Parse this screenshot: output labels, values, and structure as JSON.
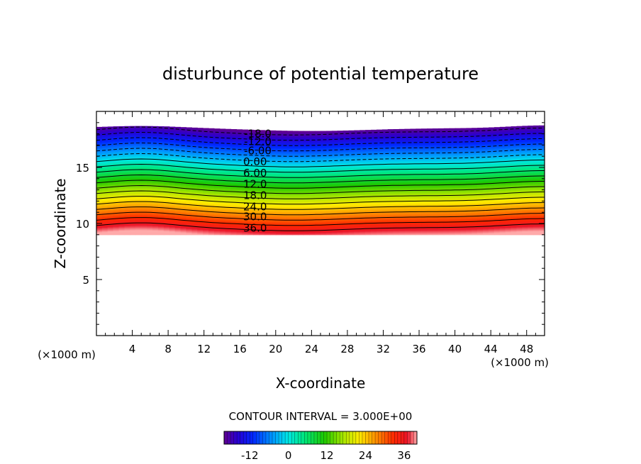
{
  "chart_data": {
    "type": "heatmap",
    "title": "disturbunce of potential temperature",
    "xlabel": "X-coordinate",
    "ylabel": "Z-coordinate",
    "x_unit": "(×1000 m)",
    "y_unit": "(×1000 m)",
    "xlim": [
      0,
      50
    ],
    "ylim": [
      0,
      20
    ],
    "x_ticks": [
      4,
      8,
      12,
      16,
      20,
      24,
      28,
      32,
      36,
      40,
      44,
      48
    ],
    "x_tick_labels": [
      "4",
      "8",
      "12",
      "16",
      "20",
      "24",
      "28",
      "32",
      "36",
      "40",
      "44",
      "48"
    ],
    "y_ticks": [
      5,
      10,
      15
    ],
    "y_tick_labels": [
      "5",
      "10",
      "15"
    ],
    "field_z_range": [
      9,
      18.5
    ],
    "value_range": [
      -20,
      40
    ],
    "contour_interval_text": "CONTOUR INTERVAL = 3.000E+00",
    "contour_interval": 3,
    "contour_levels": [
      -18,
      -15,
      -12,
      -9,
      -6,
      -3,
      0,
      3,
      6,
      9,
      12,
      15,
      18,
      21,
      24,
      27,
      30,
      33,
      36
    ],
    "contour_labels": [
      {
        "value": -18,
        "text": "-18.0",
        "x": 18,
        "z": 18.0
      },
      {
        "value": -12,
        "text": "-12.0",
        "x": 18,
        "z": 17.3
      },
      {
        "value": -6,
        "text": "-6.00",
        "x": 18,
        "z": 16.5
      },
      {
        "value": 0,
        "text": "0.00",
        "x": 17.7,
        "z": 15.5
      },
      {
        "value": 6,
        "text": "6.00",
        "x": 17.7,
        "z": 14.5
      },
      {
        "value": 12,
        "text": "12.0",
        "x": 17.7,
        "z": 13.5
      },
      {
        "value": 18,
        "text": "18.0",
        "x": 17.7,
        "z": 12.5
      },
      {
        "value": 24,
        "text": "24.0",
        "x": 17.7,
        "z": 11.5
      },
      {
        "value": 30,
        "text": "30.0",
        "x": 17.7,
        "z": 10.6
      },
      {
        "value": 36,
        "text": "36.0",
        "x": 17.7,
        "z": 9.6
      }
    ],
    "colorbar": {
      "min": -20,
      "max": 40,
      "ticks": [
        -12,
        0,
        12,
        24,
        36
      ],
      "tick_labels": [
        "-12",
        "0",
        "12",
        "24",
        "36"
      ]
    }
  }
}
